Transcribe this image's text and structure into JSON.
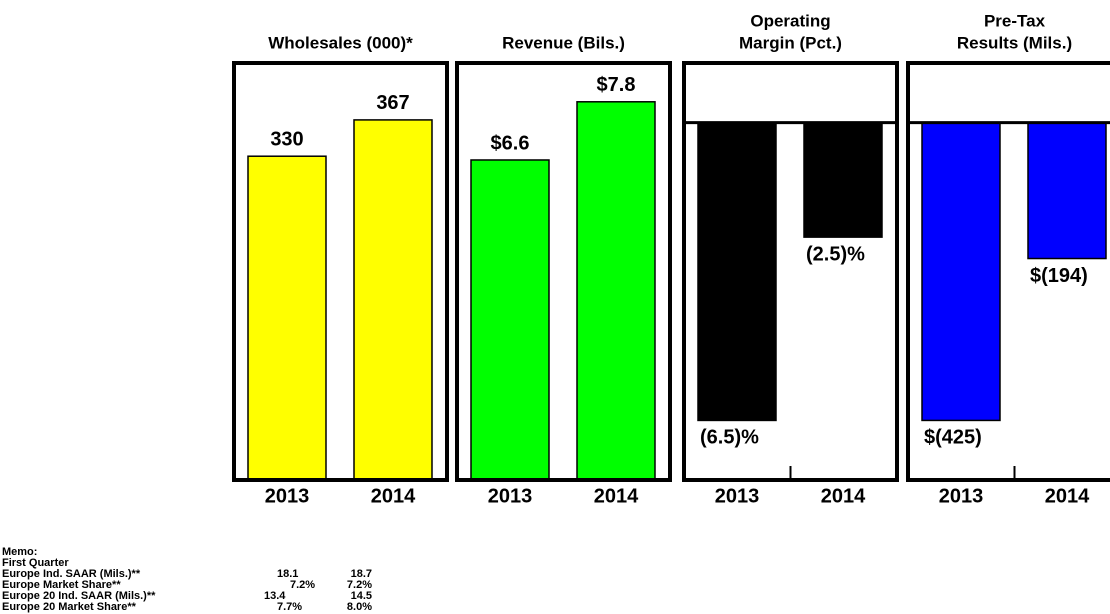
{
  "chart_data": [
    {
      "type": "bar",
      "title": [
        "Wholesales (000)*"
      ],
      "categories": [
        "2013",
        "2014"
      ],
      "values": [
        330,
        367
      ],
      "color": "#ffff00",
      "ylim": [
        0,
        425
      ]
    },
    {
      "type": "bar",
      "title": [
        "Revenue (Bils.)"
      ],
      "categories": [
        "2013",
        "2014"
      ],
      "values": [
        6.6,
        7.8
      ],
      "value_labels": [
        "$6.6",
        "$7.8"
      ],
      "color": "#00ff00",
      "ylim": [
        0,
        8.6
      ]
    },
    {
      "type": "bar",
      "title": [
        "Operating",
        "Margin (Pct.)"
      ],
      "categories": [
        "2013",
        "2014"
      ],
      "values": [
        -6.5,
        -2.5
      ],
      "value_labels": [
        "(6.5)%",
        "(2.5)%"
      ],
      "color": "#000000",
      "ylim": [
        -7.8,
        1.3
      ]
    },
    {
      "type": "bar",
      "title": [
        "Pre-Tax",
        "Results (Mils.)"
      ],
      "categories": [
        "2013",
        "2014"
      ],
      "values": [
        -425,
        -194
      ],
      "value_labels": [
        "$(425)",
        "$(194)"
      ],
      "color": "#0000ff",
      "ylim": [
        -510,
        85
      ]
    }
  ],
  "memo": {
    "title": "Memo:",
    "subtitle": "First Quarter",
    "rows": [
      [
        "Europe Ind. SAAR (Mils.)**",
        "18.1",
        "18.7"
      ],
      [
        "Europe Market Share**",
        "7.2%",
        "7.2%"
      ],
      [
        "Europe 20 Ind. SAAR (Mils.)**",
        "13.4",
        "14.5"
      ],
      [
        "Europe 20 Market Share**",
        "7.7%",
        "8.0%"
      ]
    ]
  }
}
